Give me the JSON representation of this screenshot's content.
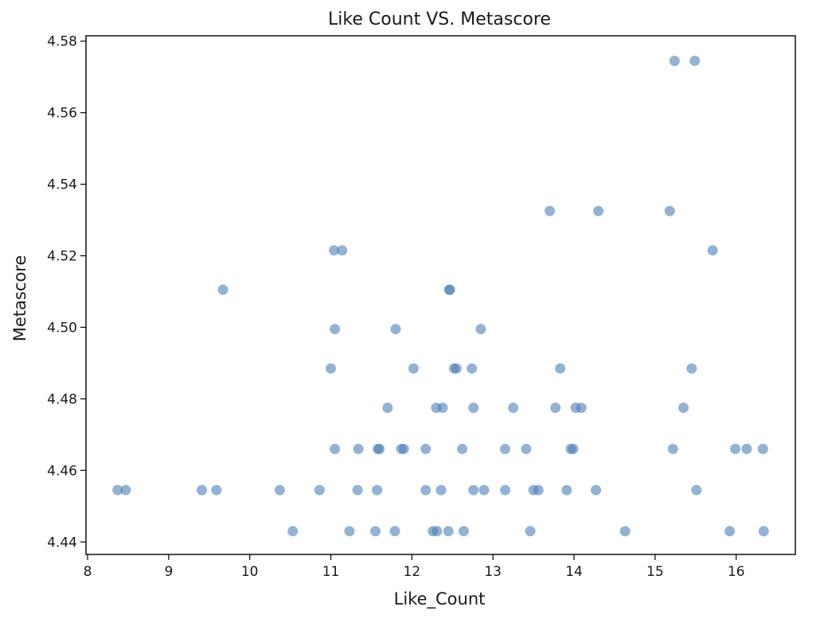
{
  "chart_data": {
    "type": "scatter",
    "title": "Like Count VS. Metascore",
    "xlabel": "Like_Count",
    "ylabel": "Metascore",
    "xlim": [
      7.98,
      16.73
    ],
    "ylim": [
      4.4365,
      4.5815
    ],
    "xticks": [
      8,
      9,
      10,
      11,
      12,
      13,
      14,
      15,
      16
    ],
    "yticks": [
      4.44,
      4.46,
      4.48,
      4.5,
      4.52,
      4.54,
      4.56,
      4.58
    ],
    "ytick_labels": [
      "4.44",
      "4.46",
      "4.48",
      "4.50",
      "4.52",
      "4.54",
      "4.56",
      "4.58"
    ],
    "grid": false,
    "point_color": "#4c7fb5",
    "points": [
      {
        "x": 15.24,
        "y": 4.5745
      },
      {
        "x": 15.49,
        "y": 4.5745
      },
      {
        "x": 13.7,
        "y": 4.5325
      },
      {
        "x": 14.3,
        "y": 4.5325
      },
      {
        "x": 15.18,
        "y": 4.5325
      },
      {
        "x": 11.04,
        "y": 4.5215
      },
      {
        "x": 11.14,
        "y": 4.5215
      },
      {
        "x": 15.71,
        "y": 4.5215
      },
      {
        "x": 9.67,
        "y": 4.5105
      },
      {
        "x": 12.46,
        "y": 4.5105
      },
      {
        "x": 12.47,
        "y": 4.5105
      },
      {
        "x": 11.05,
        "y": 4.4995
      },
      {
        "x": 11.8,
        "y": 4.4995
      },
      {
        "x": 12.85,
        "y": 4.4995
      },
      {
        "x": 11.0,
        "y": 4.4885
      },
      {
        "x": 12.02,
        "y": 4.4885
      },
      {
        "x": 12.52,
        "y": 4.4885
      },
      {
        "x": 12.55,
        "y": 4.4885
      },
      {
        "x": 12.74,
        "y": 4.4885
      },
      {
        "x": 13.83,
        "y": 4.4885
      },
      {
        "x": 15.45,
        "y": 4.4885
      },
      {
        "x": 11.7,
        "y": 4.4775
      },
      {
        "x": 12.3,
        "y": 4.4775
      },
      {
        "x": 12.38,
        "y": 4.4775
      },
      {
        "x": 12.76,
        "y": 4.4775
      },
      {
        "x": 13.25,
        "y": 4.4775
      },
      {
        "x": 13.77,
        "y": 4.4775
      },
      {
        "x": 14.02,
        "y": 4.4775
      },
      {
        "x": 14.09,
        "y": 4.4775
      },
      {
        "x": 15.35,
        "y": 4.4775
      },
      {
        "x": 11.05,
        "y": 4.466
      },
      {
        "x": 11.34,
        "y": 4.466
      },
      {
        "x": 11.58,
        "y": 4.466
      },
      {
        "x": 11.6,
        "y": 4.466
      },
      {
        "x": 11.87,
        "y": 4.466
      },
      {
        "x": 11.9,
        "y": 4.466
      },
      {
        "x": 12.17,
        "y": 4.466
      },
      {
        "x": 12.62,
        "y": 4.466
      },
      {
        "x": 13.15,
        "y": 4.466
      },
      {
        "x": 13.41,
        "y": 4.466
      },
      {
        "x": 13.96,
        "y": 4.466
      },
      {
        "x": 13.99,
        "y": 4.466
      },
      {
        "x": 15.22,
        "y": 4.466
      },
      {
        "x": 15.99,
        "y": 4.466
      },
      {
        "x": 16.13,
        "y": 4.466
      },
      {
        "x": 16.33,
        "y": 4.466
      },
      {
        "x": 8.37,
        "y": 4.4545
      },
      {
        "x": 8.47,
        "y": 4.4545
      },
      {
        "x": 9.41,
        "y": 4.4545
      },
      {
        "x": 9.59,
        "y": 4.4545
      },
      {
        "x": 10.37,
        "y": 4.4545
      },
      {
        "x": 10.86,
        "y": 4.4545
      },
      {
        "x": 11.33,
        "y": 4.4545
      },
      {
        "x": 11.57,
        "y": 4.4545
      },
      {
        "x": 12.17,
        "y": 4.4545
      },
      {
        "x": 12.36,
        "y": 4.4545
      },
      {
        "x": 12.76,
        "y": 4.4545
      },
      {
        "x": 12.89,
        "y": 4.4545
      },
      {
        "x": 13.15,
        "y": 4.4545
      },
      {
        "x": 13.5,
        "y": 4.4545
      },
      {
        "x": 13.56,
        "y": 4.4545
      },
      {
        "x": 13.91,
        "y": 4.4545
      },
      {
        "x": 14.27,
        "y": 4.4545
      },
      {
        "x": 15.51,
        "y": 4.4545
      },
      {
        "x": 10.53,
        "y": 4.443
      },
      {
        "x": 11.23,
        "y": 4.443
      },
      {
        "x": 11.55,
        "y": 4.443
      },
      {
        "x": 11.79,
        "y": 4.443
      },
      {
        "x": 12.26,
        "y": 4.443
      },
      {
        "x": 12.31,
        "y": 4.443
      },
      {
        "x": 12.45,
        "y": 4.443
      },
      {
        "x": 12.64,
        "y": 4.443
      },
      {
        "x": 13.46,
        "y": 4.443
      },
      {
        "x": 14.63,
        "y": 4.443
      },
      {
        "x": 15.92,
        "y": 4.443
      },
      {
        "x": 16.34,
        "y": 4.443
      }
    ]
  }
}
